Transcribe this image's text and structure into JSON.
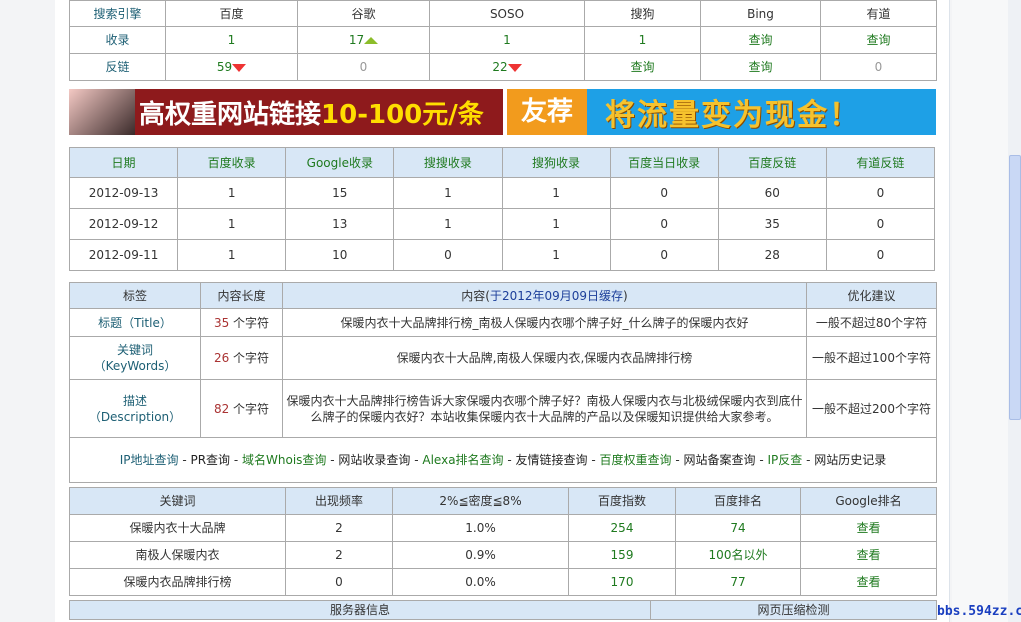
{
  "engines": {
    "headers": [
      "搜索引擎",
      "百度",
      "谷歌",
      "SOSO",
      "搜狗",
      "Bing",
      "有道"
    ],
    "rows": [
      {
        "label": "收录",
        "cells": [
          {
            "v": "1"
          },
          {
            "v": "17",
            "trend": "up"
          },
          {
            "v": "1"
          },
          {
            "v": "1"
          },
          {
            "v": "查询",
            "link": true
          },
          {
            "v": "查询",
            "link": true
          }
        ]
      },
      {
        "label": "反链",
        "cells": [
          {
            "v": "59",
            "trend": "down"
          },
          {
            "v": "0",
            "gray": true
          },
          {
            "v": "22",
            "trend": "down"
          },
          {
            "v": "查询",
            "link": true
          },
          {
            "v": "查询",
            "link": true
          },
          {
            "v": "0",
            "gray": true
          }
        ]
      }
    ]
  },
  "banner": {
    "left_text": "高权重网站链接",
    "left_price": "10-100元/条",
    "right_tag": "友荐",
    "right_slogan": "将流量变为现金！"
  },
  "history": {
    "headers": [
      "日期",
      "百度收录",
      "Google收录",
      "搜搜收录",
      "搜狗收录",
      "百度当日收录",
      "百度反链",
      "有道反链"
    ],
    "rows": [
      [
        "2012-09-13",
        "1",
        "15",
        "1",
        "1",
        "0",
        "60",
        "0"
      ],
      [
        "2012-09-12",
        "1",
        "13",
        "1",
        "1",
        "0",
        "35",
        "0"
      ],
      [
        "2012-09-11",
        "1",
        "10",
        "0",
        "1",
        "0",
        "28",
        "0"
      ]
    ]
  },
  "meta": {
    "headers": {
      "tag": "标签",
      "length": "内容长度",
      "content_prefix": "内容(",
      "content_cache": "于2012年09月09日缓存",
      "content_suffix": ")",
      "advice": "优化建议"
    },
    "unit": " 个字符",
    "rows": [
      {
        "label": "标题（Title）",
        "label_en": "",
        "count": "35",
        "content": "保暖内衣十大品牌排行榜_南极人保暖内衣哪个牌子好_什么牌子的保暖内衣好",
        "advice": "一般不超过80个字符"
      },
      {
        "label": "关键词",
        "label_en": "（KeyWords）",
        "count": "26",
        "content": "保暖内衣十大品牌,南极人保暖内衣,保暖内衣品牌排行榜",
        "advice": "一般不超过100个字符"
      },
      {
        "label": "描述",
        "label_en": "（Description）",
        "count": "82",
        "content": "保暖内衣十大品牌排行榜告诉大家保暖内衣哪个牌子好？南极人保暖内衣与北极绒保暖内衣到底什么牌子的保暖内衣好？本站收集保暖内衣十大品牌的产品以及保暖知识提供给大家参考。",
        "advice": "一般不超过200个字符"
      }
    ],
    "links": [
      {
        "t": "IP地址查询",
        "c": "teal"
      },
      {
        "t": "PR查询",
        "c": "black"
      },
      {
        "t": "域名Whois查询",
        "c": "green"
      },
      {
        "t": "网站收录查询",
        "c": "black"
      },
      {
        "t": "Alexa排名查询",
        "c": "green"
      },
      {
        "t": "友情链接查询",
        "c": "black"
      },
      {
        "t": "百度权重查询",
        "c": "green"
      },
      {
        "t": "网站备案查询",
        "c": "black"
      },
      {
        "t": "IP反查",
        "c": "green"
      },
      {
        "t": "网站历史记录",
        "c": "black"
      }
    ]
  },
  "keywords": {
    "headers": [
      "关键词",
      "出现频率",
      "2%≦密度≦8%",
      "百度指数",
      "百度排名",
      "Google排名"
    ],
    "rows": [
      [
        "保暖内衣十大品牌",
        "2",
        "1.0%",
        "254",
        "74",
        "查看"
      ],
      [
        "南极人保暖内衣",
        "2",
        "0.9%",
        "159",
        "100名以外",
        "查看"
      ],
      [
        "保暖内衣品牌排行榜",
        "0",
        "0.0%",
        "170",
        "77",
        "查看"
      ]
    ]
  },
  "bottom": {
    "left": "服务器信息",
    "right": "网页压缩检测"
  },
  "watermark": "bbs.594zz.com",
  "colors": {
    "header_bg": "#d8e7f6",
    "teal": "#1d5f74",
    "green": "#1f7a1f",
    "red": "#aa3333"
  }
}
